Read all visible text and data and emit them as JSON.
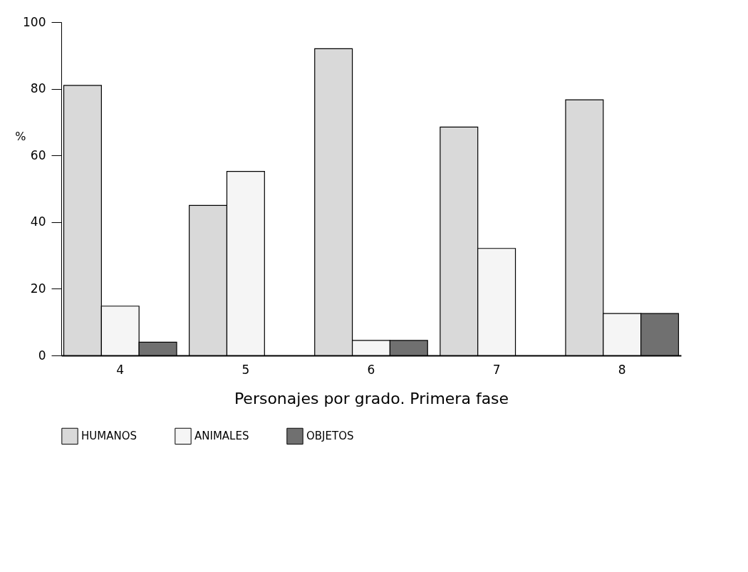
{
  "chart_data": {
    "type": "bar",
    "xlabel": "Personajes por grado. Primera fase",
    "ylabel": "%",
    "categories": [
      "4",
      "5",
      "6",
      "7",
      "8"
    ],
    "series": [
      {
        "name": "HUMANOS",
        "color": "#d9d9d9",
        "values": [
          81,
          45,
          92,
          68.5,
          76.7
        ]
      },
      {
        "name": "ANIMALES",
        "color": "#f5f5f5",
        "values": [
          14.8,
          55.2,
          4.5,
          32.1,
          12.6
        ]
      },
      {
        "name": "OBJETOS",
        "color": "#707070",
        "values": [
          4,
          null,
          4.5,
          null,
          12.6
        ]
      }
    ],
    "ylim": [
      0,
      100
    ],
    "yticks": [
      0,
      20,
      40,
      60,
      80,
      100
    ],
    "grid": false,
    "legend": "bottom"
  }
}
